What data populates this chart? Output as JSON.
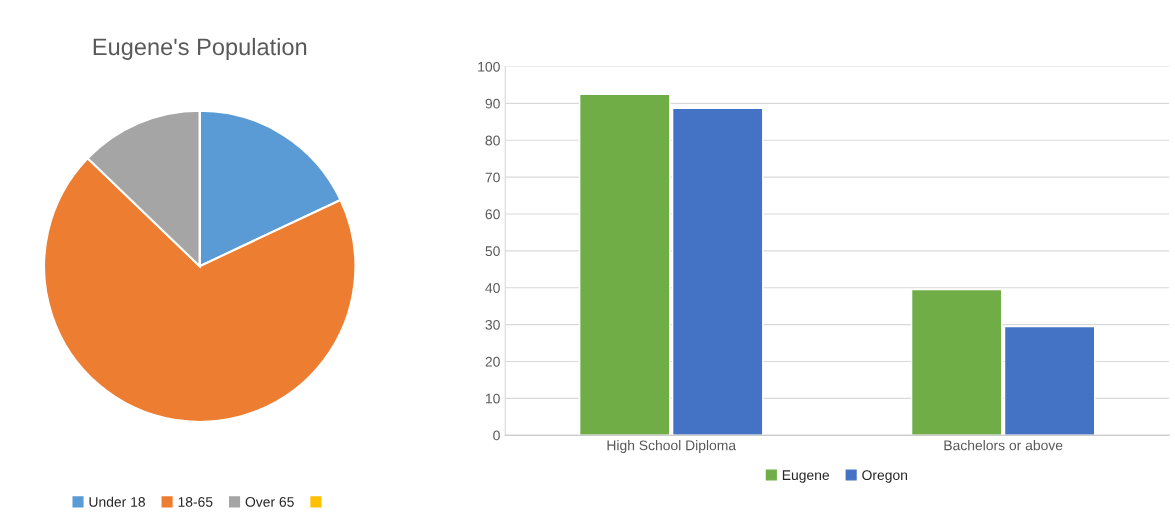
{
  "chart_data": [
    {
      "type": "pie",
      "title": "Eugene's Population",
      "categories": [
        "Under 18",
        "18-65",
        "Over 65",
        null
      ],
      "values": [
        18,
        69.2,
        12.8,
        0
      ],
      "colors": [
        "#5b9bd5",
        "#ed7d31",
        "#a5a5a5",
        "#ffc000"
      ],
      "legend": "bottom"
    },
    {
      "type": "bar",
      "categories": [
        "High School Diploma",
        "Bachelors or above"
      ],
      "series": [
        {
          "name": "Eugene",
          "color": "#70ad47",
          "values": [
            92.5,
            39.5
          ]
        },
        {
          "name": "Oregon",
          "color": "#4472c4",
          "values": [
            88.7,
            29.5
          ]
        }
      ],
      "ylim": [
        0,
        100
      ],
      "yticks": [
        0,
        10,
        20,
        30,
        40,
        50,
        60,
        70,
        80,
        90,
        100
      ],
      "grid": "y",
      "legend": "bottom"
    }
  ]
}
